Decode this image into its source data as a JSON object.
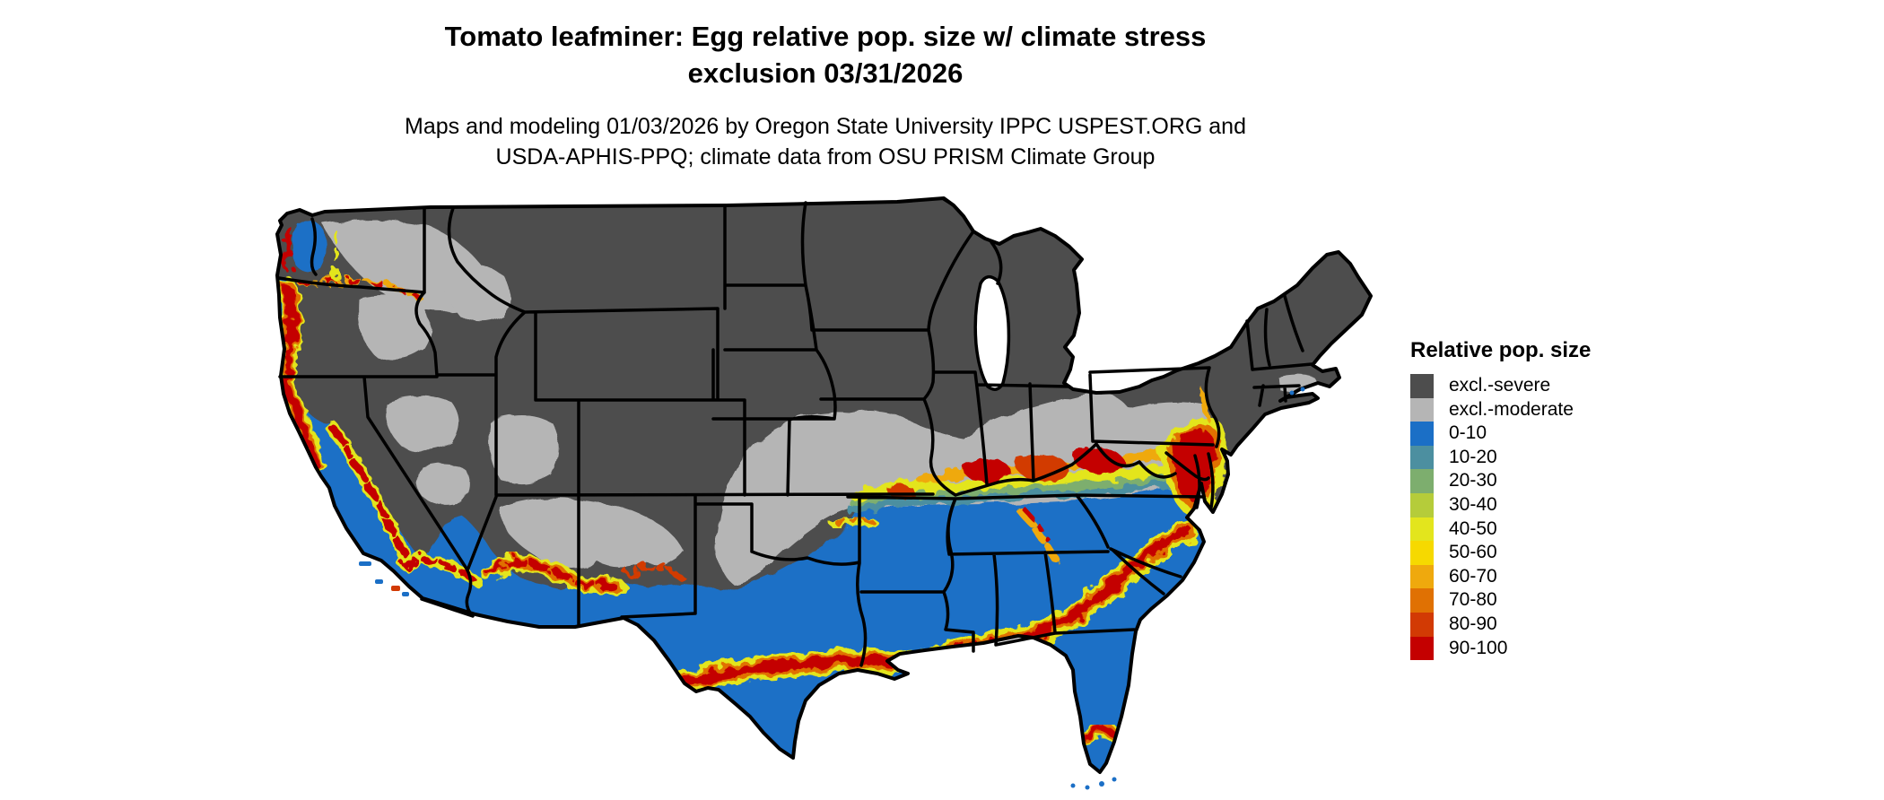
{
  "title": {
    "line1": "Tomato leafminer: Egg relative pop. size w/ climate stress",
    "line2": "exclusion 03/31/2026"
  },
  "subtitle": {
    "line1": "Maps and modeling 01/03/2026 by Oregon State University IPPC USPEST.ORG and",
    "line2": "USDA-APHIS-PPQ; climate data from OSU PRISM Climate Group"
  },
  "legend": {
    "title": "Relative pop. size",
    "items": [
      {
        "label": "excl.-severe",
        "color_key": "excl_severe"
      },
      {
        "label": "excl.-moderate",
        "color_key": "excl_moderate"
      },
      {
        "label": "0-10",
        "color_key": "b0_10"
      },
      {
        "label": "10-20",
        "color_key": "b10_20"
      },
      {
        "label": "20-30",
        "color_key": "b20_30"
      },
      {
        "label": "30-40",
        "color_key": "b30_40"
      },
      {
        "label": "40-50",
        "color_key": "b40_50"
      },
      {
        "label": "50-60",
        "color_key": "b50_60"
      },
      {
        "label": "60-70",
        "color_key": "b60_70"
      },
      {
        "label": "70-80",
        "color_key": "b70_80"
      },
      {
        "label": "80-90",
        "color_key": "b80_90"
      },
      {
        "label": "90-100",
        "color_key": "b90_100"
      }
    ]
  },
  "palette": {
    "excl_severe": "#4D4D4D",
    "excl_moderate": "#B5B5B5",
    "b0_10": "#1B6FC6",
    "b10_20": "#4C8FA0",
    "b20_30": "#7DAE6E",
    "b30_40": "#B5CC3A",
    "b40_50": "#E3E51D",
    "b50_60": "#F6D900",
    "b60_70": "#EFA90D",
    "b70_80": "#E07103",
    "b80_90": "#D23A04",
    "b90_100": "#C40000",
    "border": "#000000",
    "water": "#FFFFFF",
    "background": "#FFFFFF"
  },
  "map": {
    "region": "Continental United States",
    "type": "raster choropleth of modeled relative population size",
    "zones": [
      {
        "name": "northern-interior",
        "class": "excl.-severe (dark gray)"
      },
      {
        "name": "midwest-midatlantic-band-and-interior-west-mountains",
        "class": "excl.-moderate (light gray)"
      },
      {
        "name": "southern-states-california-valley-southeast-florida",
        "class": "0-10 (blue)"
      },
      {
        "name": "gulf-coast-east-texas-band",
        "class": "50-100 (yellow-orange-red band)"
      },
      {
        "name": "ohio-valley-kentucky-band",
        "class": "30-100 transition band"
      },
      {
        "name": "chesapeake-delmarva-hotspot",
        "class": "80-100 (red)"
      },
      {
        "name": "oregon-coast-willamette-strip",
        "class": "70-100 (red strip)"
      },
      {
        "name": "sierra-foothills-socal-az-nm-uplands",
        "class": "40-100 speckled bands"
      },
      {
        "name": "central-florida-band",
        "class": "60-100 (red-orange arc)"
      }
    ]
  }
}
